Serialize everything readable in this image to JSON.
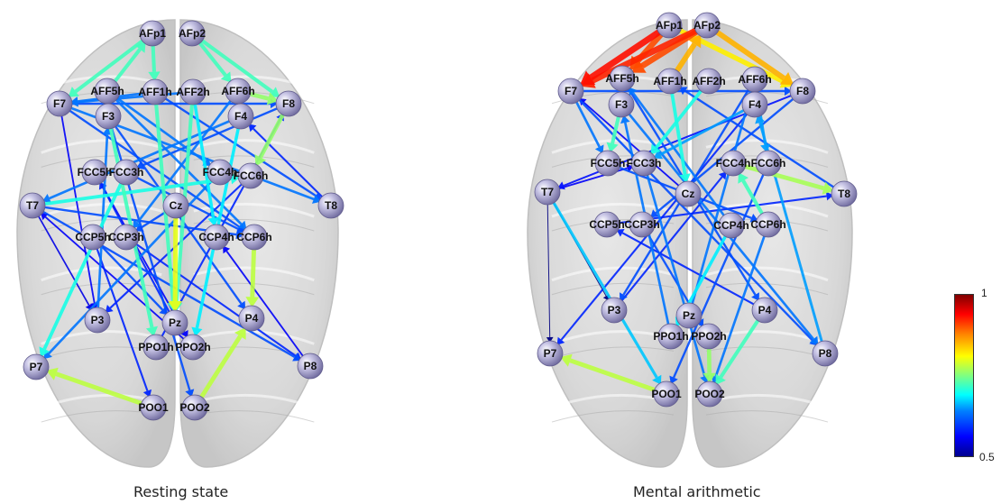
{
  "panels": [
    {
      "id": "resting",
      "caption": "Resting state",
      "nodes": [
        {
          "label": "AFp1"
        },
        {
          "label": "AFp2"
        },
        {
          "label": "AFF5h"
        },
        {
          "label": "AFF1h"
        },
        {
          "label": "AFF2h"
        },
        {
          "label": "AFF6h"
        },
        {
          "label": "F7"
        },
        {
          "label": "F3"
        },
        {
          "label": "F4"
        },
        {
          "label": "F8"
        },
        {
          "label": "FCC5h"
        },
        {
          "label": "FCC3h"
        },
        {
          "label": "FCC4h"
        },
        {
          "label": "FCC6h"
        },
        {
          "label": "T7"
        },
        {
          "label": "Cz"
        },
        {
          "label": "T8"
        },
        {
          "label": "CCP5h"
        },
        {
          "label": "CCP3h"
        },
        {
          "label": "CCP4h"
        },
        {
          "label": "CCP6h"
        },
        {
          "label": "P3"
        },
        {
          "label": "Pz"
        },
        {
          "label": "P4"
        },
        {
          "label": "PPO1h"
        },
        {
          "label": "PPO2h"
        },
        {
          "label": "P7"
        },
        {
          "label": "P8"
        },
        {
          "label": "POO1"
        },
        {
          "label": "POO2"
        }
      ],
      "edges": [
        {
          "from": "POO1",
          "to": "P7",
          "w": 0.78
        },
        {
          "from": "POO2",
          "to": "P4",
          "w": 0.78
        },
        {
          "from": "Cz",
          "to": "Pz",
          "w": 0.8
        },
        {
          "from": "F8",
          "to": "FCC6h",
          "w": 0.76
        },
        {
          "from": "CCP6h",
          "to": "P4",
          "w": 0.78
        },
        {
          "from": "AFF6h",
          "to": "F8",
          "w": 0.76
        },
        {
          "from": "AFF5h",
          "to": "AFp1",
          "w": 0.72
        },
        {
          "from": "AFp2",
          "to": "AFF6h",
          "w": 0.72
        },
        {
          "from": "AFp1",
          "to": "F7",
          "w": 0.72
        },
        {
          "from": "AFp2",
          "to": "F8",
          "w": 0.72
        },
        {
          "from": "AFF1h",
          "to": "Pz",
          "w": 0.72
        },
        {
          "from": "AFF2h",
          "to": "Pz",
          "w": 0.72
        },
        {
          "from": "F3",
          "to": "PPO1h",
          "w": 0.72
        },
        {
          "from": "FCC3h",
          "to": "P7",
          "w": 0.7
        },
        {
          "from": "F4",
          "to": "PPO2h",
          "w": 0.68
        },
        {
          "from": "T7",
          "to": "FCC6h",
          "w": 0.7
        },
        {
          "from": "AFp1",
          "to": "AFF1h",
          "w": 0.72
        },
        {
          "from": "AFF2h",
          "to": "CCP4h",
          "w": 0.68
        },
        {
          "from": "F7",
          "to": "T8",
          "w": 0.62
        },
        {
          "from": "F7",
          "to": "CCP6h",
          "w": 0.6
        },
        {
          "from": "AFF5h",
          "to": "CCP6h",
          "w": 0.62
        },
        {
          "from": "F4",
          "to": "T7",
          "w": 0.62
        },
        {
          "from": "F8",
          "to": "FCC3h",
          "w": 0.6
        },
        {
          "from": "T7",
          "to": "P8",
          "w": 0.6
        },
        {
          "from": "T7",
          "to": "CCP6h",
          "w": 0.6
        },
        {
          "from": "CCP5h",
          "to": "Pz",
          "w": 0.6
        },
        {
          "from": "P3",
          "to": "F3",
          "w": 0.62
        },
        {
          "from": "CCP3h",
          "to": "P8",
          "w": 0.58
        },
        {
          "from": "AFF6h",
          "to": "CCP3h",
          "w": 0.62
        },
        {
          "from": "FCC4h",
          "to": "P7",
          "w": 0.62
        },
        {
          "from": "F3",
          "to": "P4",
          "w": 0.6
        },
        {
          "from": "PPO1h",
          "to": "F8",
          "w": 0.58
        },
        {
          "from": "AFF1h",
          "to": "T8",
          "w": 0.6
        },
        {
          "from": "F7",
          "to": "P3",
          "w": 0.56
        },
        {
          "from": "T7",
          "to": "P3",
          "w": 0.55
        },
        {
          "from": "CCP5h",
          "to": "POO1",
          "w": 0.58
        },
        {
          "from": "P8",
          "to": "CCP4h",
          "w": 0.56
        },
        {
          "from": "F3",
          "to": "POO2",
          "w": 0.6
        },
        {
          "from": "FCC5h",
          "to": "PPO2h",
          "w": 0.56
        },
        {
          "from": "T8",
          "to": "F4",
          "w": 0.58
        },
        {
          "from": "FCC6h",
          "to": "P3",
          "w": 0.58
        },
        {
          "from": "AFF5h",
          "to": "FCC4h",
          "w": 0.62
        },
        {
          "from": "AFF1h",
          "to": "F7",
          "w": 0.62
        },
        {
          "from": "AFF2h",
          "to": "F7",
          "w": 0.62
        },
        {
          "from": "F7",
          "to": "F8",
          "w": 0.6
        },
        {
          "from": "Cz",
          "to": "CCP3h",
          "w": 0.6
        },
        {
          "from": "FCC3h",
          "to": "CCP6h",
          "w": 0.6
        },
        {
          "from": "PPO2h",
          "to": "T7",
          "w": 0.56
        },
        {
          "from": "Pz",
          "to": "FCC5h",
          "w": 0.58
        }
      ]
    },
    {
      "id": "arithmetic",
      "caption": "Mental arithmetic",
      "nodes": [
        {
          "label": "AFp1"
        },
        {
          "label": "AFp2"
        },
        {
          "label": "AFF5h"
        },
        {
          "label": "AFF1h"
        },
        {
          "label": "AFF2h"
        },
        {
          "label": "AFF6h"
        },
        {
          "label": "F7"
        },
        {
          "label": "F3"
        },
        {
          "label": "F4"
        },
        {
          "label": "F8"
        },
        {
          "label": "FCC5h"
        },
        {
          "label": "FCC3h"
        },
        {
          "label": "FCC4h"
        },
        {
          "label": "FCC6h"
        },
        {
          "label": "T7"
        },
        {
          "label": "Cz"
        },
        {
          "label": "T8"
        },
        {
          "label": "CCP5h"
        },
        {
          "label": "CCP3h"
        },
        {
          "label": "CCP4h"
        },
        {
          "label": "CCP6h"
        },
        {
          "label": "P3"
        },
        {
          "label": "Pz"
        },
        {
          "label": "P4"
        },
        {
          "label": "PPO1h"
        },
        {
          "label": "PPO2h"
        },
        {
          "label": "P7"
        },
        {
          "label": "P8"
        },
        {
          "label": "POO1"
        },
        {
          "label": "POO2"
        }
      ],
      "edges": [
        {
          "from": "AFp1",
          "to": "F7",
          "w": 0.93
        },
        {
          "from": "AFp2",
          "to": "F7",
          "w": 0.92
        },
        {
          "from": "AFp1",
          "to": "AFF5h",
          "w": 0.9
        },
        {
          "from": "AFp2",
          "to": "AFF5h",
          "w": 0.9
        },
        {
          "from": "AFp2",
          "to": "F8",
          "w": 0.85
        },
        {
          "from": "AFp1",
          "to": "F8",
          "w": 0.82
        },
        {
          "from": "AFF1h",
          "to": "AFp2",
          "w": 0.85
        },
        {
          "from": "POO1",
          "to": "P7",
          "w": 0.78
        },
        {
          "from": "FCC4h",
          "to": "T8",
          "w": 0.77
        },
        {
          "from": "PPO2h",
          "to": "POO2",
          "w": 0.76
        },
        {
          "from": "P4",
          "to": "POO2",
          "w": 0.72
        },
        {
          "from": "CCP6h",
          "to": "FCC4h",
          "w": 0.72
        },
        {
          "from": "AFF2h",
          "to": "FCC3h",
          "w": 0.7
        },
        {
          "from": "F3",
          "to": "FCC5h",
          "w": 0.72
        },
        {
          "from": "AFF1h",
          "to": "Cz",
          "w": 0.7
        },
        {
          "from": "T7",
          "to": "POO1",
          "w": 0.66
        },
        {
          "from": "CCP4h",
          "to": "PPO1h",
          "w": 0.68
        },
        {
          "from": "P8",
          "to": "F4",
          "w": 0.64
        },
        {
          "from": "T7",
          "to": "P3",
          "w": 0.45
        },
        {
          "from": "T7",
          "to": "P7",
          "w": 0.5
        },
        {
          "from": "F7",
          "to": "FCC5h",
          "w": 0.62
        },
        {
          "from": "F7",
          "to": "P8",
          "w": 0.6
        },
        {
          "from": "F3",
          "to": "P8",
          "w": 0.62
        },
        {
          "from": "F4",
          "to": "P7",
          "w": 0.58
        },
        {
          "from": "F8",
          "to": "T7",
          "w": 0.57
        },
        {
          "from": "AFF5h",
          "to": "P4",
          "w": 0.6
        },
        {
          "from": "AFF6h",
          "to": "P3",
          "w": 0.6
        },
        {
          "from": "FCC3h",
          "to": "POO2",
          "w": 0.62
        },
        {
          "from": "FCC6h",
          "to": "POO1",
          "w": 0.6
        },
        {
          "from": "CCP3h",
          "to": "PPO2h",
          "w": 0.6
        },
        {
          "from": "CCP5h",
          "to": "T8",
          "w": 0.58
        },
        {
          "from": "T8",
          "to": "AFF1h",
          "w": 0.6
        },
        {
          "from": "Cz",
          "to": "F7",
          "w": 0.56
        },
        {
          "from": "F8",
          "to": "CCP3h",
          "w": 0.6
        },
        {
          "from": "FCC5h",
          "to": "CCP6h",
          "w": 0.6
        },
        {
          "from": "P3",
          "to": "FCC4h",
          "w": 0.58
        },
        {
          "from": "Pz",
          "to": "AFF6h",
          "w": 0.62
        },
        {
          "from": "F7",
          "to": "F8",
          "w": 0.6
        },
        {
          "from": "T7",
          "to": "FCC3h",
          "w": 0.56
        },
        {
          "from": "PPO1h",
          "to": "F3",
          "w": 0.62
        },
        {
          "from": "CCP4h",
          "to": "AFF5h",
          "w": 0.62
        },
        {
          "from": "P4",
          "to": "CCP5h",
          "w": 0.58
        },
        {
          "from": "F4",
          "to": "FCC3h",
          "w": 0.64
        },
        {
          "from": "CCP6h",
          "to": "POO2",
          "w": 0.62
        },
        {
          "from": "AFF6h",
          "to": "FCC6h",
          "w": 0.64
        }
      ]
    }
  ],
  "colorbar": {
    "max_label": "1",
    "min_label": "0.5",
    "min": 0.5,
    "max": 1
  },
  "colors": {
    "node_fill": "#b6b3d8",
    "node_edge": "#6e6a99",
    "brain": "#c9c9c9"
  },
  "icons": {
    "node": "electrode-sphere",
    "brain": "brain-top-view"
  }
}
